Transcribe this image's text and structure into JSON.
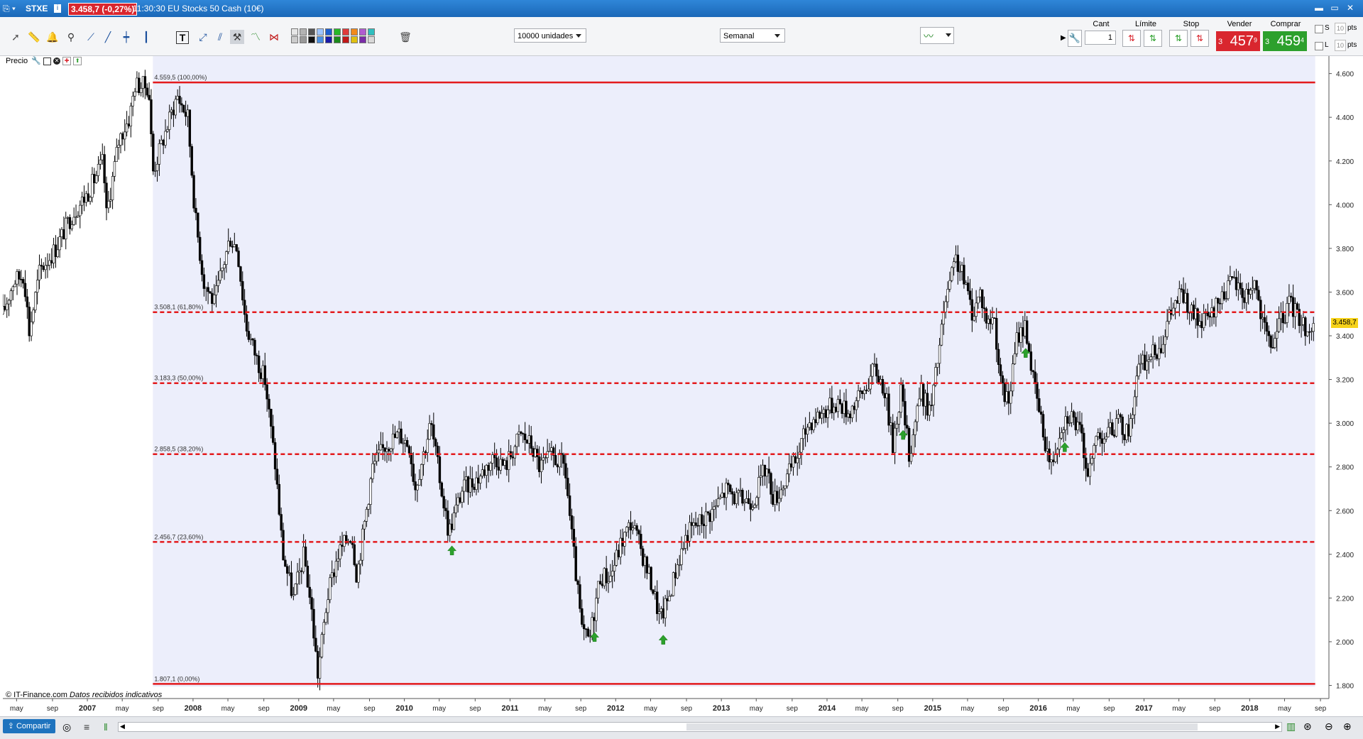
{
  "window": {
    "symbol": "STXE",
    "price_badge": "3.458,7 (-0,27%)",
    "time_name": "11:30:30 EU Stocks 50 Cash (10€)"
  },
  "toolbar": {
    "quantity_select": "10000 unidades",
    "period_select": "Semanal",
    "palette": [
      "#e6e6e6",
      "#cccccc",
      "#b3b3b3",
      "#999999",
      "#555555",
      "#111111",
      "#9ec5fe",
      "#4a90e2",
      "#1f5fcf",
      "#1a1aa8",
      "#28b828",
      "#1c8a1c",
      "#e03a3a",
      "#c01818",
      "#f28a1c",
      "#e0c010",
      "#b05cd0",
      "#7a2da8",
      "#2fbfbf",
      "#d8d8d8"
    ],
    "icons": [
      "pointer-icon",
      "ruler-icon",
      "alert-bell-icon",
      "zoom-icon",
      "line-tool-icon",
      "segment-tool-icon",
      "horizontal-line-icon",
      "vertical-line-icon",
      "text-tool-icon",
      "channel-icon",
      "fan-icon",
      "hammer-icon",
      "fibonacci-icon",
      "fibonacci-fan-icon",
      "trash-icon"
    ]
  },
  "trade_panel": {
    "cant_label": "Cant",
    "cant_value": "1",
    "limite_label": "Límite",
    "stop_label": "Stop",
    "vender_label": "Vender",
    "vender_prefix": "3",
    "vender_big": "457",
    "vender_sup": "9",
    "comprar_label": "Comprar",
    "comprar_prefix": "3",
    "comprar_big": "459",
    "comprar_sup": "4",
    "s_label": "S",
    "l_label": "L",
    "pts_value": "10",
    "pts_label": "pts"
  },
  "chart_panel": {
    "label": "Precio",
    "credit": "© IT-Finance.com",
    "credit_note": "Datos recibidos indicativos",
    "last_price_label": "3.458,7"
  },
  "bottom": {
    "share_label": "Compartir"
  },
  "chart_data": {
    "type": "candlestick",
    "period": "weekly",
    "ylim": [
      1740,
      4680
    ],
    "y_ticks": [
      "1.800",
      "2.000",
      "2.200",
      "2.400",
      "2.600",
      "2.800",
      "3.000",
      "3.200",
      "3.400",
      "3.600",
      "3.800",
      "4.000",
      "4.200",
      "4.400",
      "4.600"
    ],
    "y_tick_values": [
      1800,
      2000,
      2200,
      2400,
      2600,
      2800,
      3000,
      3200,
      3400,
      3600,
      3800,
      4000,
      4200,
      4400,
      4600
    ],
    "x_range": [
      2006.2,
      2018.75
    ],
    "x_labels": [
      {
        "t": 2006.33,
        "label": "may"
      },
      {
        "t": 2006.67,
        "label": "sep"
      },
      {
        "t": 2007.0,
        "label": "2007"
      },
      {
        "t": 2007.33,
        "label": "may"
      },
      {
        "t": 2007.67,
        "label": "sep"
      },
      {
        "t": 2008.0,
        "label": "2008"
      },
      {
        "t": 2008.33,
        "label": "may"
      },
      {
        "t": 2008.67,
        "label": "sep"
      },
      {
        "t": 2009.0,
        "label": "2009"
      },
      {
        "t": 2009.33,
        "label": "may"
      },
      {
        "t": 2009.67,
        "label": "sep"
      },
      {
        "t": 2010.0,
        "label": "2010"
      },
      {
        "t": 2010.33,
        "label": "may"
      },
      {
        "t": 2010.67,
        "label": "sep"
      },
      {
        "t": 2011.0,
        "label": "2011"
      },
      {
        "t": 2011.33,
        "label": "may"
      },
      {
        "t": 2011.67,
        "label": "sep"
      },
      {
        "t": 2012.0,
        "label": "2012"
      },
      {
        "t": 2012.33,
        "label": "may"
      },
      {
        "t": 2012.67,
        "label": "sep"
      },
      {
        "t": 2013.0,
        "label": "2013"
      },
      {
        "t": 2013.33,
        "label": "may"
      },
      {
        "t": 2013.67,
        "label": "sep"
      },
      {
        "t": 2014.0,
        "label": "2014"
      },
      {
        "t": 2014.33,
        "label": "may"
      },
      {
        "t": 2014.67,
        "label": "sep"
      },
      {
        "t": 2015.0,
        "label": "2015"
      },
      {
        "t": 2015.33,
        "label": "may"
      },
      {
        "t": 2015.67,
        "label": "sep"
      },
      {
        "t": 2016.0,
        "label": "2016"
      },
      {
        "t": 2016.33,
        "label": "may"
      },
      {
        "t": 2016.67,
        "label": "sep"
      },
      {
        "t": 2017.0,
        "label": "2017"
      },
      {
        "t": 2017.33,
        "label": "may"
      },
      {
        "t": 2017.67,
        "label": "sep"
      },
      {
        "t": 2018.0,
        "label": "2018"
      },
      {
        "t": 2018.33,
        "label": "may"
      },
      {
        "t": 2018.67,
        "label": "sep"
      }
    ],
    "fibonacci": {
      "start_t": 2007.62,
      "end_t": 2018.62,
      "levels": [
        {
          "value": 4559.5,
          "label": "4.559,5 (100,00%)",
          "style": "solid"
        },
        {
          "value": 3508.1,
          "label": "3.508,1 (61,80%)",
          "style": "dashed"
        },
        {
          "value": 3183.3,
          "label": "3.183,3 (50,00%)",
          "style": "dashed"
        },
        {
          "value": 2858.5,
          "label": "2.858,5 (38,20%)",
          "style": "dashed"
        },
        {
          "value": 2456.7,
          "label": "2.456,7 (23,60%)",
          "style": "dashed"
        },
        {
          "value": 1807.1,
          "label": "1.807,1 (0,00%)",
          "style": "solid"
        }
      ]
    },
    "anchors": [
      [
        2006.2,
        3500
      ],
      [
        2006.3,
        3650
      ],
      [
        2006.4,
        3680
      ],
      [
        2006.45,
        3420
      ],
      [
        2006.55,
        3700
      ],
      [
        2006.7,
        3800
      ],
      [
        2006.85,
        3950
      ],
      [
        2007.0,
        4050
      ],
      [
        2007.15,
        4200
      ],
      [
        2007.18,
        3950
      ],
      [
        2007.3,
        4300
      ],
      [
        2007.4,
        4400
      ],
      [
        2007.45,
        4550
      ],
      [
        2007.58,
        4540
      ],
      [
        2007.62,
        4150
      ],
      [
        2007.75,
        4350
      ],
      [
        2007.85,
        4500
      ],
      [
        2007.95,
        4400
      ],
      [
        2008.02,
        3950
      ],
      [
        2008.1,
        3650
      ],
      [
        2008.2,
        3550
      ],
      [
        2008.35,
        3850
      ],
      [
        2008.42,
        3800
      ],
      [
        2008.5,
        3450
      ],
      [
        2008.6,
        3300
      ],
      [
        2008.68,
        3200
      ],
      [
        2008.78,
        2800
      ],
      [
        2008.85,
        2400
      ],
      [
        2008.95,
        2200
      ],
      [
        2009.05,
        2400
      ],
      [
        2009.12,
        2150
      ],
      [
        2009.18,
        1850
      ],
      [
        2009.27,
        2200
      ],
      [
        2009.37,
        2400
      ],
      [
        2009.5,
        2500
      ],
      [
        2009.55,
        2300
      ],
      [
        2009.7,
        2800
      ],
      [
        2009.82,
        2900
      ],
      [
        2009.95,
        2950
      ],
      [
        2010.05,
        2900
      ],
      [
        2010.1,
        2700
      ],
      [
        2010.25,
        3000
      ],
      [
        2010.35,
        2700
      ],
      [
        2010.42,
        2500
      ],
      [
        2010.55,
        2700
      ],
      [
        2010.7,
        2750
      ],
      [
        2010.85,
        2850
      ],
      [
        2010.95,
        2800
      ],
      [
        2011.1,
        2950
      ],
      [
        2011.2,
        2900
      ],
      [
        2011.28,
        2800
      ],
      [
        2011.4,
        2850
      ],
      [
        2011.52,
        2800
      ],
      [
        2011.58,
        2500
      ],
      [
        2011.68,
        2050
      ],
      [
        2011.75,
        2000
      ],
      [
        2011.85,
        2300
      ],
      [
        2011.95,
        2300
      ],
      [
        2012.05,
        2450
      ],
      [
        2012.15,
        2550
      ],
      [
        2012.22,
        2450
      ],
      [
        2012.35,
        2250
      ],
      [
        2012.42,
        2100
      ],
      [
        2012.5,
        2200
      ],
      [
        2012.58,
        2350
      ],
      [
        2012.68,
        2500
      ],
      [
        2012.8,
        2550
      ],
      [
        2012.92,
        2600
      ],
      [
        2013.05,
        2700
      ],
      [
        2013.15,
        2650
      ],
      [
        2013.3,
        2650
      ],
      [
        2013.42,
        2800
      ],
      [
        2013.5,
        2650
      ],
      [
        2013.62,
        2750
      ],
      [
        2013.72,
        2850
      ],
      [
        2013.82,
        3000
      ],
      [
        2013.95,
        3050
      ],
      [
        2014.1,
        3100
      ],
      [
        2014.2,
        3050
      ],
      [
        2014.35,
        3150
      ],
      [
        2014.45,
        3250
      ],
      [
        2014.55,
        3150
      ],
      [
        2014.62,
        2900
      ],
      [
        2014.7,
        3150
      ],
      [
        2014.78,
        2850
      ],
      [
        2014.88,
        3150
      ],
      [
        2014.98,
        3050
      ],
      [
        2015.05,
        3300
      ],
      [
        2015.12,
        3550
      ],
      [
        2015.22,
        3750
      ],
      [
        2015.3,
        3650
      ],
      [
        2015.38,
        3500
      ],
      [
        2015.45,
        3600
      ],
      [
        2015.52,
        3450
      ],
      [
        2015.58,
        3500
      ],
      [
        2015.65,
        3150
      ],
      [
        2015.72,
        3100
      ],
      [
        2015.8,
        3400
      ],
      [
        2015.88,
        3450
      ],
      [
        2015.95,
        3200
      ],
      [
        2016.05,
        2950
      ],
      [
        2016.12,
        2800
      ],
      [
        2016.22,
        3000
      ],
      [
        2016.3,
        3050
      ],
      [
        2016.4,
        2950
      ],
      [
        2016.48,
        2750
      ],
      [
        2016.55,
        2950
      ],
      [
        2016.65,
        2950
      ],
      [
        2016.75,
        3000
      ],
      [
        2016.85,
        2950
      ],
      [
        2016.95,
        3250
      ],
      [
        2017.05,
        3300
      ],
      [
        2017.15,
        3350
      ],
      [
        2017.25,
        3500
      ],
      [
        2017.35,
        3600
      ],
      [
        2017.45,
        3500
      ],
      [
        2017.55,
        3450
      ],
      [
        2017.65,
        3500
      ],
      [
        2017.75,
        3600
      ],
      [
        2017.85,
        3650
      ],
      [
        2017.95,
        3580
      ],
      [
        2018.05,
        3650
      ],
      [
        2018.12,
        3450
      ],
      [
        2018.2,
        3350
      ],
      [
        2018.28,
        3450
      ],
      [
        2018.38,
        3550
      ],
      [
        2018.45,
        3500
      ],
      [
        2018.55,
        3420
      ],
      [
        2018.62,
        3458
      ]
    ],
    "buy_signals": [
      2010.45,
      2011.8,
      2012.45,
      2014.72,
      2015.88,
      2016.25
    ]
  }
}
